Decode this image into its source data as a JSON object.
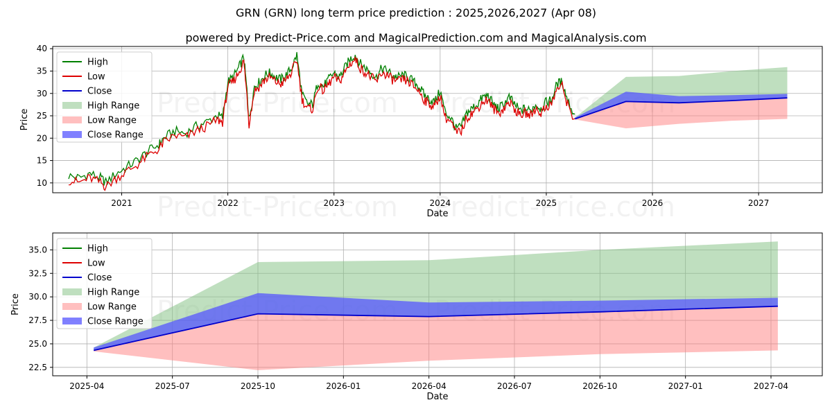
{
  "title": "GRN (GRN) long term price prediction : 2025,2026,2027 (Apr 08)",
  "subtitle": "powered by Predict-Price.com and MagicalPrediction.com and MagicalAnalysis.com",
  "watermark": "Predict-Price.com",
  "colors": {
    "high": "#008000",
    "low": "#dd0000",
    "close": "#0000cc",
    "high_range": "#7fbf7f",
    "low_range": "#ff7f7f",
    "close_range": "#5555ff"
  },
  "chart_data": [
    {
      "type": "line",
      "xlabel": "Date",
      "ylabel": "Price",
      "xlim": [
        2020.35,
        2027.6
      ],
      "ylim": [
        7.8,
        40.5
      ],
      "x_ticks": [
        2021,
        2022,
        2023,
        2024,
        2025,
        2026,
        2027
      ],
      "x_tick_labels": [
        "2021",
        "2022",
        "2023",
        "2024",
        "2025",
        "2026",
        "2027"
      ],
      "y_ticks": [
        10,
        15,
        20,
        25,
        30,
        35,
        40
      ],
      "y_tick_labels": [
        "10",
        "15",
        "20",
        "25",
        "30",
        "35",
        "40"
      ],
      "grid": true,
      "legend_position": "top-left",
      "legend": [
        "High",
        "Low",
        "Close",
        "High Range",
        "Low Range",
        "Close Range"
      ],
      "history_x": [
        2020.5,
        2020.6,
        2020.7,
        2020.8,
        2020.85,
        2020.95,
        2021.05,
        2021.15,
        2021.25,
        2021.35,
        2021.4,
        2021.5,
        2021.6,
        2021.7,
        2021.8,
        2021.9,
        2021.95,
        2022.0,
        2022.05,
        2022.1,
        2022.15,
        2022.18,
        2022.2,
        2022.25,
        2022.3,
        2022.35,
        2022.4,
        2022.45,
        2022.5,
        2022.55,
        2022.6,
        2022.65,
        2022.7,
        2022.75,
        2022.8,
        2022.85,
        2022.9,
        2022.95,
        2023.0,
        2023.05,
        2023.1,
        2023.15,
        2023.2,
        2023.25,
        2023.3,
        2023.35,
        2023.4,
        2023.45,
        2023.5,
        2023.55,
        2023.6,
        2023.65,
        2023.7,
        2023.75,
        2023.8,
        2023.85,
        2023.9,
        2023.95,
        2024.0,
        2024.05,
        2024.1,
        2024.15,
        2024.2,
        2024.25,
        2024.3,
        2024.35,
        2024.4,
        2024.45,
        2024.5,
        2024.55,
        2024.6,
        2024.65,
        2024.7,
        2024.75,
        2024.8,
        2024.85,
        2024.9,
        2024.95,
        2025.0,
        2025.05,
        2025.1,
        2025.15,
        2025.2,
        2025.27
      ],
      "history_close": [
        11.0,
        10.5,
        11.5,
        10.5,
        9.5,
        11.5,
        13.0,
        14.5,
        16.5,
        18.0,
        19.5,
        21.0,
        20.5,
        22.0,
        23.0,
        24.5,
        24.0,
        32.0,
        33.0,
        35.0,
        37.5,
        30.0,
        23.5,
        31.0,
        32.0,
        33.5,
        34.0,
        33.0,
        32.5,
        33.5,
        35.0,
        38.0,
        29.0,
        27.0,
        27.0,
        32.0,
        31.0,
        32.5,
        34.0,
        33.0,
        35.0,
        37.0,
        38.0,
        36.0,
        35.0,
        34.0,
        33.0,
        35.0,
        34.5,
        33.5,
        33.0,
        33.5,
        33.0,
        32.0,
        31.0,
        29.0,
        28.0,
        27.5,
        30.0,
        25.0,
        24.0,
        21.5,
        22.0,
        25.0,
        26.0,
        27.0,
        28.5,
        29.0,
        27.0,
        26.0,
        27.0,
        28.5,
        27.0,
        25.5,
        26.0,
        25.5,
        27.0,
        26.0,
        27.5,
        28.0,
        31.5,
        32.0,
        28.0,
        24.3
      ],
      "forecast_x": [
        2025.27,
        2025.75,
        2026.25,
        2026.75,
        2027.27
      ],
      "forecast_close": [
        24.3,
        28.2,
        27.9,
        28.4,
        29.0
      ],
      "forecast_high": [
        24.6,
        33.7,
        33.9,
        35.0,
        35.9
      ],
      "forecast_low": [
        24.2,
        22.2,
        23.2,
        23.9,
        24.3
      ],
      "close_range_upper": [
        24.6,
        30.4,
        29.4,
        29.6,
        29.9
      ],
      "close_range_lower": [
        24.3,
        28.2,
        27.9,
        28.4,
        29.0
      ]
    },
    {
      "type": "line",
      "xlabel": "Date",
      "ylabel": "Price",
      "xlim": [
        2025.15,
        2027.4
      ],
      "ylim": [
        21.6,
        36.8
      ],
      "x_ticks": [
        2025.25,
        2025.5,
        2025.75,
        2026.0,
        2026.25,
        2026.5,
        2026.75,
        2027.0,
        2027.25
      ],
      "x_tick_labels": [
        "2025-04",
        "2025-07",
        "2025-10",
        "2026-01",
        "2026-04",
        "2026-07",
        "2026-10",
        "2027-01",
        "2027-04"
      ],
      "y_ticks": [
        22.5,
        25.0,
        27.5,
        30.0,
        32.5,
        35.0
      ],
      "y_tick_labels": [
        "22.5",
        "25.0",
        "27.5",
        "30.0",
        "32.5",
        "35.0"
      ],
      "grid": true,
      "legend_position": "top-left",
      "legend": [
        "High",
        "Low",
        "Close",
        "High Range",
        "Low Range",
        "Close Range"
      ],
      "forecast_x": [
        2025.27,
        2025.75,
        2026.25,
        2026.75,
        2027.27
      ],
      "forecast_close": [
        24.3,
        28.2,
        27.9,
        28.4,
        29.0
      ],
      "forecast_high": [
        24.6,
        33.7,
        33.9,
        35.0,
        35.9
      ],
      "forecast_low": [
        24.2,
        22.2,
        23.2,
        23.9,
        24.3
      ],
      "close_range_upper": [
        24.6,
        30.4,
        29.4,
        29.6,
        29.9
      ],
      "close_range_lower": [
        24.3,
        28.2,
        27.9,
        28.4,
        29.0
      ]
    }
  ]
}
